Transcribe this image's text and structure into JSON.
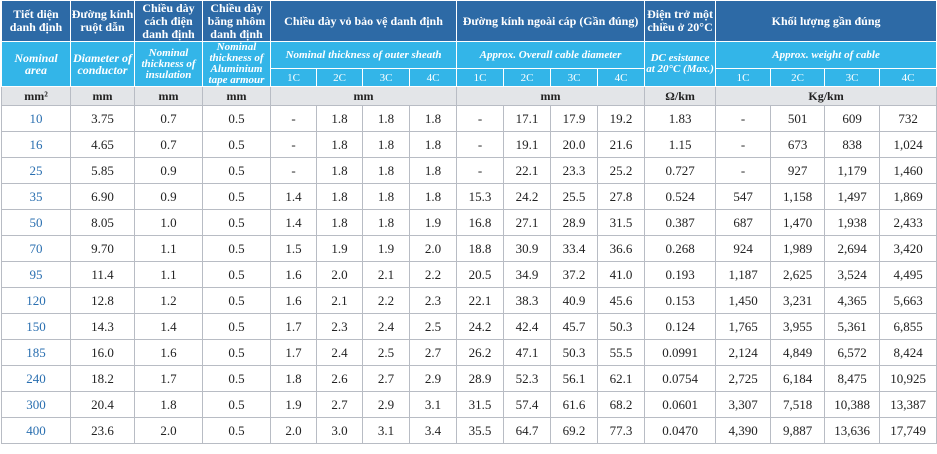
{
  "header_vi": {
    "area": "Tiết diện danh định",
    "diameter": "Đường kính ruột dẫn",
    "insulation": "Chiều dày cách điện danh định",
    "armour": "Chiều dày băng nhôm danh định",
    "sheath": "Chiều dày vỏ bảo vệ danh định",
    "overall": "Đường kính ngoài cáp (Gần đúng)",
    "resistance": "Điện trở một chiều ở 20°C",
    "weight": "Khối lượng gần đúng"
  },
  "header_en": {
    "area": "Nominal area",
    "diameter": "Diameter of conductor",
    "insulation": "Nominal thickness of insulation",
    "armour": "Nominal thickness of Aluminium tape armour",
    "sheath": "Nominal thickness of outer sheath",
    "overall": "Approx. Overall cable diameter",
    "resistance": "DC esistance at 20°C (Max.)",
    "weight": "Approx. weight of cable"
  },
  "cores": [
    "1C",
    "2C",
    "3C",
    "4C"
  ],
  "units": {
    "area": "mm²",
    "diameter": "mm",
    "insulation": "mm",
    "armour": "mm",
    "sheath": "mm",
    "overall": "mm",
    "resistance": "Ω/km",
    "weight": "Kg/km"
  },
  "rows": [
    [
      "10",
      "3.75",
      "0.7",
      "0.5",
      "-",
      "1.8",
      "1.8",
      "1.8",
      "-",
      "17.1",
      "17.9",
      "19.2",
      "1.83",
      "-",
      "501",
      "609",
      "732"
    ],
    [
      "16",
      "4.65",
      "0.7",
      "0.5",
      "-",
      "1.8",
      "1.8",
      "1.8",
      "-",
      "19.1",
      "20.0",
      "21.6",
      "1.15",
      "-",
      "673",
      "838",
      "1,024"
    ],
    [
      "25",
      "5.85",
      "0.9",
      "0.5",
      "-",
      "1.8",
      "1.8",
      "1.8",
      "-",
      "22.1",
      "23.3",
      "25.2",
      "0.727",
      "-",
      "927",
      "1,179",
      "1,460"
    ],
    [
      "35",
      "6.90",
      "0.9",
      "0.5",
      "1.4",
      "1.8",
      "1.8",
      "1.8",
      "15.3",
      "24.2",
      "25.5",
      "27.8",
      "0.524",
      "547",
      "1,158",
      "1,497",
      "1,869"
    ],
    [
      "50",
      "8.05",
      "1.0",
      "0.5",
      "1.4",
      "1.8",
      "1.8",
      "1.9",
      "16.8",
      "27.1",
      "28.9",
      "31.5",
      "0.387",
      "687",
      "1,470",
      "1,938",
      "2,433"
    ],
    [
      "70",
      "9.70",
      "1.1",
      "0.5",
      "1.5",
      "1.9",
      "1.9",
      "2.0",
      "18.8",
      "30.9",
      "33.4",
      "36.6",
      "0.268",
      "924",
      "1,989",
      "2,694",
      "3,420"
    ],
    [
      "95",
      "11.4",
      "1.1",
      "0.5",
      "1.6",
      "2.0",
      "2.1",
      "2.2",
      "20.5",
      "34.9",
      "37.2",
      "41.0",
      "0.193",
      "1,187",
      "2,625",
      "3,524",
      "4,495"
    ],
    [
      "120",
      "12.8",
      "1.2",
      "0.5",
      "1.6",
      "2.1",
      "2.2",
      "2.3",
      "22.1",
      "38.3",
      "40.9",
      "45.6",
      "0.153",
      "1,450",
      "3,231",
      "4,365",
      "5,663"
    ],
    [
      "150",
      "14.3",
      "1.4",
      "0.5",
      "1.7",
      "2.3",
      "2.4",
      "2.5",
      "24.2",
      "42.4",
      "45.7",
      "50.3",
      "0.124",
      "1,765",
      "3,955",
      "5,361",
      "6,855"
    ],
    [
      "185",
      "16.0",
      "1.6",
      "0.5",
      "1.7",
      "2.4",
      "2.5",
      "2.7",
      "26.2",
      "47.1",
      "50.3",
      "55.5",
      "0.0991",
      "2,124",
      "4,849",
      "6,572",
      "8,424"
    ],
    [
      "240",
      "18.2",
      "1.7",
      "0.5",
      "1.8",
      "2.6",
      "2.7",
      "2.9",
      "28.9",
      "52.3",
      "56.1",
      "62.1",
      "0.0754",
      "2,725",
      "6,184",
      "8,475",
      "10,925"
    ],
    [
      "300",
      "20.4",
      "1.8",
      "0.5",
      "1.9",
      "2.7",
      "2.9",
      "3.1",
      "31.5",
      "57.4",
      "61.6",
      "68.2",
      "0.0601",
      "3,307",
      "7,518",
      "10,388",
      "13,387"
    ],
    [
      "400",
      "23.6",
      "2.0",
      "0.5",
      "2.0",
      "3.0",
      "3.1",
      "3.4",
      "35.5",
      "64.7",
      "69.2",
      "77.3",
      "0.0470",
      "4,390",
      "9,887",
      "13,636",
      "17,749"
    ]
  ]
}
